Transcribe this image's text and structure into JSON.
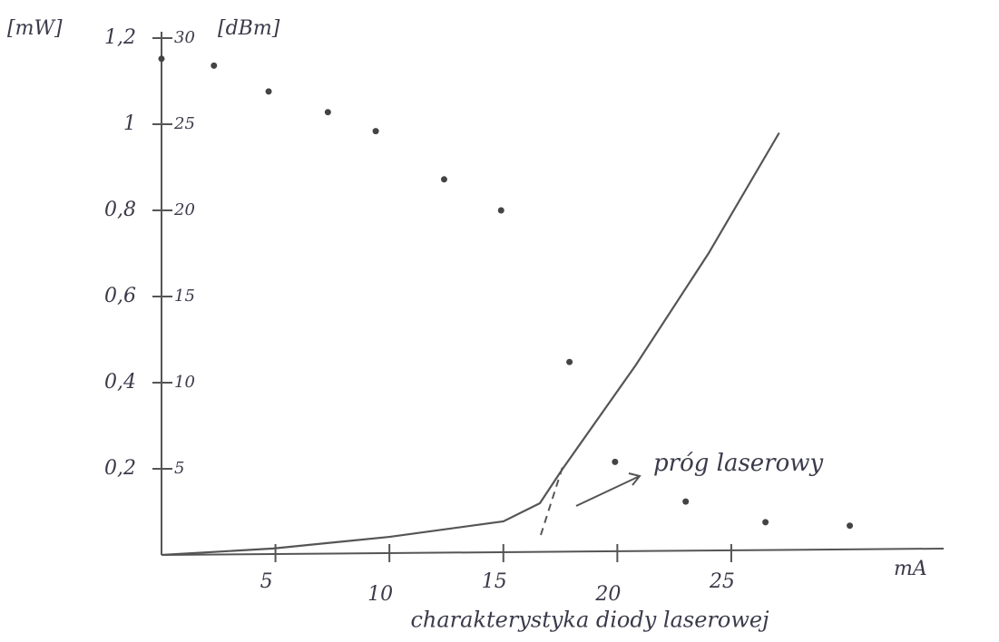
{
  "chart_data": {
    "type": "dual-line-scatter",
    "y_label": "[mW]",
    "y2_label": "[dBm]",
    "x_label": "mA",
    "annotation": "próg laserowy",
    "caption": "charakterystyka diody laserowej",
    "xlim": [
      0,
      34
    ],
    "xticks": [
      5,
      10,
      15,
      20,
      25
    ],
    "ylim": [
      0,
      1.2
    ],
    "yticks": [
      {
        "value": 0.2,
        "label": "0,2"
      },
      {
        "value": 0.4,
        "label": "0,4"
      },
      {
        "value": 0.6,
        "label": "0,6"
      },
      {
        "value": 0.8,
        "label": "0,8"
      },
      1,
      {
        "value": 1.2,
        "label": "1,2"
      }
    ],
    "y2lim": [
      0,
      30
    ],
    "y2ticks": [
      5,
      10,
      15,
      20,
      25,
      30
    ],
    "series": [
      {
        "kind": "line",
        "color": "#555555",
        "x": [
          0,
          4.9,
          10,
          15,
          16.6,
          17.6,
          20.8,
          24.0,
          27.1
        ],
        "values": [
          0,
          0.015,
          0.042,
          0.078,
          0.12,
          0.2,
          0.44,
          0.7,
          0.98
        ]
      },
      {
        "kind": "scatter",
        "axis": "y2",
        "color": "#444444",
        "x": [
          0,
          2.3,
          4.7,
          7.3,
          9.4,
          12.4,
          14.9,
          17.9,
          19.9,
          23.0,
          26.5,
          30.2
        ],
        "values": [
          28.8,
          28.4,
          26.9,
          25.7,
          24.6,
          21.8,
          20.0,
          11.2,
          5.4,
          3.1,
          1.9,
          1.7
        ]
      }
    ]
  }
}
